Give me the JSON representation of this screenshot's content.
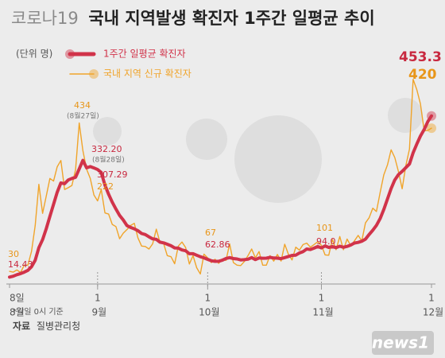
{
  "chart_data": {
    "type": "line",
    "title_parts": [
      "코로나19",
      "국내 지역발생 확진자 1주간 일평균 추이"
    ],
    "unit": "(단위 명)",
    "xlim": [
      0,
      115
    ],
    "ylim": [
      0,
      600
    ],
    "xticks": [
      {
        "value": 0,
        "label": "8일"
      },
      {
        "value": 24,
        "label": "1"
      },
      {
        "value": 54,
        "label": "1"
      },
      {
        "value": 85,
        "label": "1"
      },
      {
        "value": 115,
        "label": "1"
      }
    ],
    "xtick_groups": [
      "8월",
      "9월",
      "10월",
      "11월",
      "12월"
    ],
    "annotations": [
      "(8월27일)",
      "(8월28일)"
    ],
    "series": [
      {
        "name": "1주간 일평균 확진자",
        "color": "#d1334a",
        "values": [
          14.43,
          17,
          21,
          24,
          28,
          33,
          42.6,
          60.4,
          94.6,
          116.6,
          146.3,
          180,
          212.7,
          245.6,
          270.9,
          268.9,
          278.9,
          283,
          286.4,
          309,
          332.2,
          311.9,
          315.4,
          311.7,
          307.29,
          299.6,
          264.6,
          239.9,
          218.4,
          199.7,
          182.7,
          170.1,
          154.6,
          149.7,
          146.1,
          140.9,
          133.3,
          130.3,
          124.1,
          118.6,
          117.1,
          109.7,
          107.6,
          103.9,
          99.9,
          94.1,
          93.3,
          88.3,
          86.3,
          78.3,
          78.3,
          74,
          70,
          66.9,
          62.86,
          59,
          57.4,
          57.6,
          60.4,
          65.3,
          67.6,
          65,
          63.9,
          61.3,
          62,
          63.3,
          67.6,
          62.1,
          66.4,
          65.9,
          66,
          68.3,
          66.6,
          66.1,
          64.7,
          67.6,
          70.7,
          73.7,
          74.4,
          80.1,
          83.9,
          90.9,
          89.7,
          93.4,
          97.7,
          94,
          99.4,
          95.3,
          97.6,
          94.7,
          98.6,
          95.7,
          98.1,
          101.7,
          107.3,
          108.9,
          112.3,
          117.9,
          130.3,
          142,
          155.3,
          174,
          198.6,
          227.3,
          255.7,
          279,
          293.4,
          302.4,
          312.6,
          322.6,
          353.1,
          376.7,
          398.6,
          416.3,
          438,
          453.3
        ],
        "value_labels": [
          "14.43",
          null,
          null,
          null,
          null,
          null,
          null,
          null,
          null,
          null,
          null,
          null,
          null,
          null,
          null,
          null,
          null,
          null,
          null,
          null,
          "332.20",
          null,
          null,
          null,
          "307.29",
          null,
          null,
          null,
          null,
          null,
          null,
          null,
          null,
          null,
          null,
          null,
          null,
          null,
          null,
          null,
          null,
          null,
          null,
          null,
          null,
          null,
          null,
          null,
          null,
          null,
          null,
          null,
          null,
          null,
          "62.86",
          null,
          null,
          null,
          null,
          null,
          null,
          null,
          null,
          null,
          null,
          null,
          null,
          null,
          null,
          null,
          null,
          null,
          null,
          null,
          null,
          null,
          null,
          null,
          null,
          null,
          null,
          null,
          null,
          null,
          null,
          "94.0",
          null,
          null,
          null,
          null,
          null,
          null,
          null,
          null,
          null,
          null,
          null,
          null,
          null,
          null,
          null,
          null,
          null,
          null,
          null,
          null,
          null,
          null,
          null,
          null,
          null,
          null,
          null,
          null,
          null,
          "453.3"
        ]
      },
      {
        "name": "국내 지역 신규 확진자",
        "color": "#f0a42a",
        "values": [
          30,
          28,
          34,
          27,
          47,
          47,
          85,
          155,
          267,
          188,
          235,
          283,
          276,
          315,
          332,
          253,
          258,
          264,
          307,
          434,
          359,
          308,
          283,
          238,
          222,
          253,
          189,
          186,
          158,
          152,
          119,
          134,
          144,
          155,
          161,
          121,
          99,
          98,
          91,
          105,
          145,
          109,
          106,
          73,
          70,
          51,
          99,
          110,
          95,
          50,
          73,
          40,
          23,
          77,
          67,
          54,
          63,
          52,
          64,
          60,
          105,
          54,
          47,
          46,
          57,
          73,
          91,
          67,
          84,
          47,
          47,
          73,
          58,
          76,
          58,
          104,
          77,
          61,
          96,
          88,
          103,
          107,
          96,
          103,
          111,
          101,
          75,
          74,
          117,
          89,
          125,
          89,
          118,
          100,
          113,
          128,
          113,
          162,
          176,
          202,
          193,
          245,
          293,
          320,
          361,
          340,
          302,
          255,
          318,
          363,
          553,
          525,
          486,
          413,
          414,
          420
        ],
        "value_labels": [
          "30",
          null,
          null,
          null,
          null,
          null,
          null,
          null,
          null,
          null,
          null,
          null,
          null,
          null,
          null,
          null,
          null,
          null,
          null,
          "434",
          null,
          null,
          null,
          null,
          "222",
          null,
          null,
          null,
          null,
          null,
          null,
          null,
          null,
          null,
          null,
          null,
          null,
          null,
          null,
          null,
          null,
          null,
          null,
          null,
          null,
          null,
          null,
          null,
          null,
          null,
          null,
          null,
          null,
          null,
          "67",
          null,
          null,
          null,
          null,
          null,
          null,
          null,
          null,
          null,
          null,
          null,
          null,
          null,
          null,
          null,
          null,
          null,
          null,
          null,
          null,
          null,
          null,
          null,
          null,
          null,
          null,
          null,
          null,
          null,
          null,
          "101",
          null,
          null,
          null,
          null,
          null,
          null,
          null,
          null,
          null,
          null,
          null,
          null,
          null,
          null,
          null,
          null,
          null,
          null,
          null,
          null,
          null,
          null,
          null,
          null,
          null,
          null,
          null,
          null,
          null,
          "420"
        ]
      }
    ],
    "footnote": "*각일 0시 기준",
    "source_parts": [
      "자료",
      "질병관리청"
    ],
    "logo": "news1"
  }
}
